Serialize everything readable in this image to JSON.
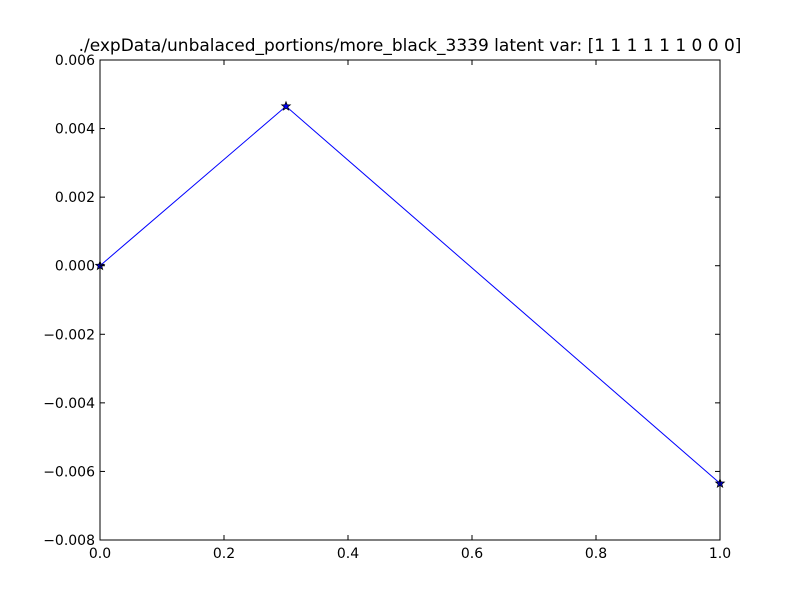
{
  "chart_data": {
    "type": "line",
    "title": "./expData/unbalaced_portions/more_black_3339 latent var: [1 1 1 1 1 1 0 0 0]",
    "xlabel": "",
    "ylabel": "",
    "xlim": [
      0.0,
      1.0
    ],
    "ylim": [
      -0.008,
      0.006
    ],
    "x_ticks": [
      0.0,
      0.2,
      0.4,
      0.6,
      0.8,
      1.0
    ],
    "x_tick_labels": [
      "0.0",
      "0.2",
      "0.4",
      "0.6",
      "0.8",
      "1.0"
    ],
    "y_ticks": [
      0.006,
      0.004,
      0.002,
      0.0,
      -0.002,
      -0.004,
      -0.006,
      -0.008
    ],
    "y_tick_labels": [
      "0.006",
      "0.004",
      "0.002",
      "0.000",
      "−0.002",
      "−0.004",
      "−0.006",
      "−0.008"
    ],
    "grid": false,
    "series": [
      {
        "x": [
          0.0,
          0.3,
          1.0
        ],
        "y": [
          0.0,
          0.00465,
          -0.00635
        ],
        "color": "#0000ff",
        "marker": "star"
      }
    ]
  }
}
